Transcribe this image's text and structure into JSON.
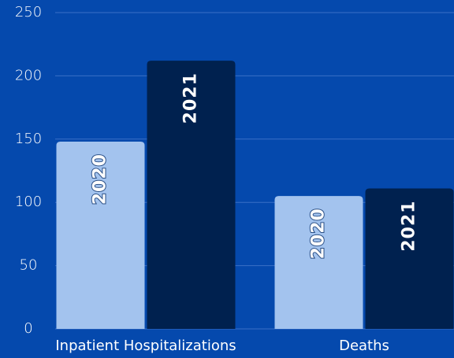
{
  "chart_data": {
    "type": "bar",
    "categories": [
      "Inpatient Hospitalizations",
      "Deaths"
    ],
    "series": [
      {
        "name": "2020",
        "color": "#a3c3ee",
        "values": [
          148,
          105
        ]
      },
      {
        "name": "2021",
        "color": "#00214f",
        "values": [
          212,
          111
        ]
      }
    ],
    "ylim": [
      0,
      250
    ],
    "yticks": [
      0,
      50,
      100,
      150,
      200,
      250
    ],
    "grid": true
  }
}
